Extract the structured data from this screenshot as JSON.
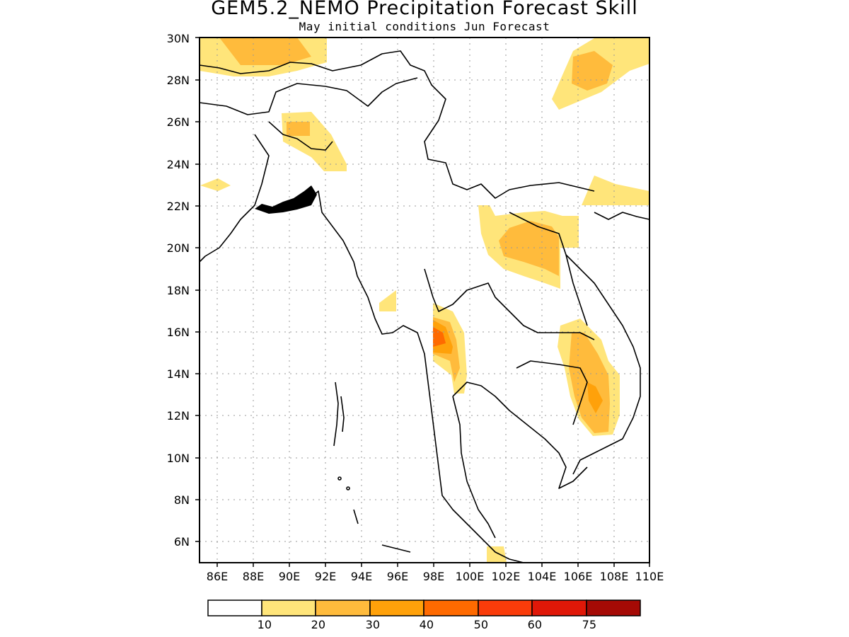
{
  "title": "GEM5.2_NEMO Precipitation Forecast Skill",
  "subtitle": "May initial conditions  Jun Forecast",
  "map": {
    "lon_range": [
      85,
      110
    ],
    "lat_range": [
      5,
      30
    ],
    "lat_labels": [
      "6N",
      "8N",
      "10N",
      "12N",
      "14N",
      "16N",
      "18N",
      "20N",
      "22N",
      "24N",
      "26N",
      "28N",
      "30N"
    ],
    "lon_labels": [
      "86E",
      "88E",
      "90E",
      "92E",
      "94E",
      "96E",
      "98E",
      "100E",
      "102E",
      "104E",
      "106E",
      "108E",
      "110E"
    ],
    "gridlines": true
  },
  "legend": {
    "labels": [
      "10",
      "20",
      "30",
      "40",
      "50",
      "60",
      "75"
    ],
    "colors": [
      "#ffffff",
      "#ffe57a",
      "#ffbb3c",
      "#ffa10a",
      "#ff6a00",
      "#fa3c0a",
      "#e01808",
      "#a50a05"
    ]
  }
}
